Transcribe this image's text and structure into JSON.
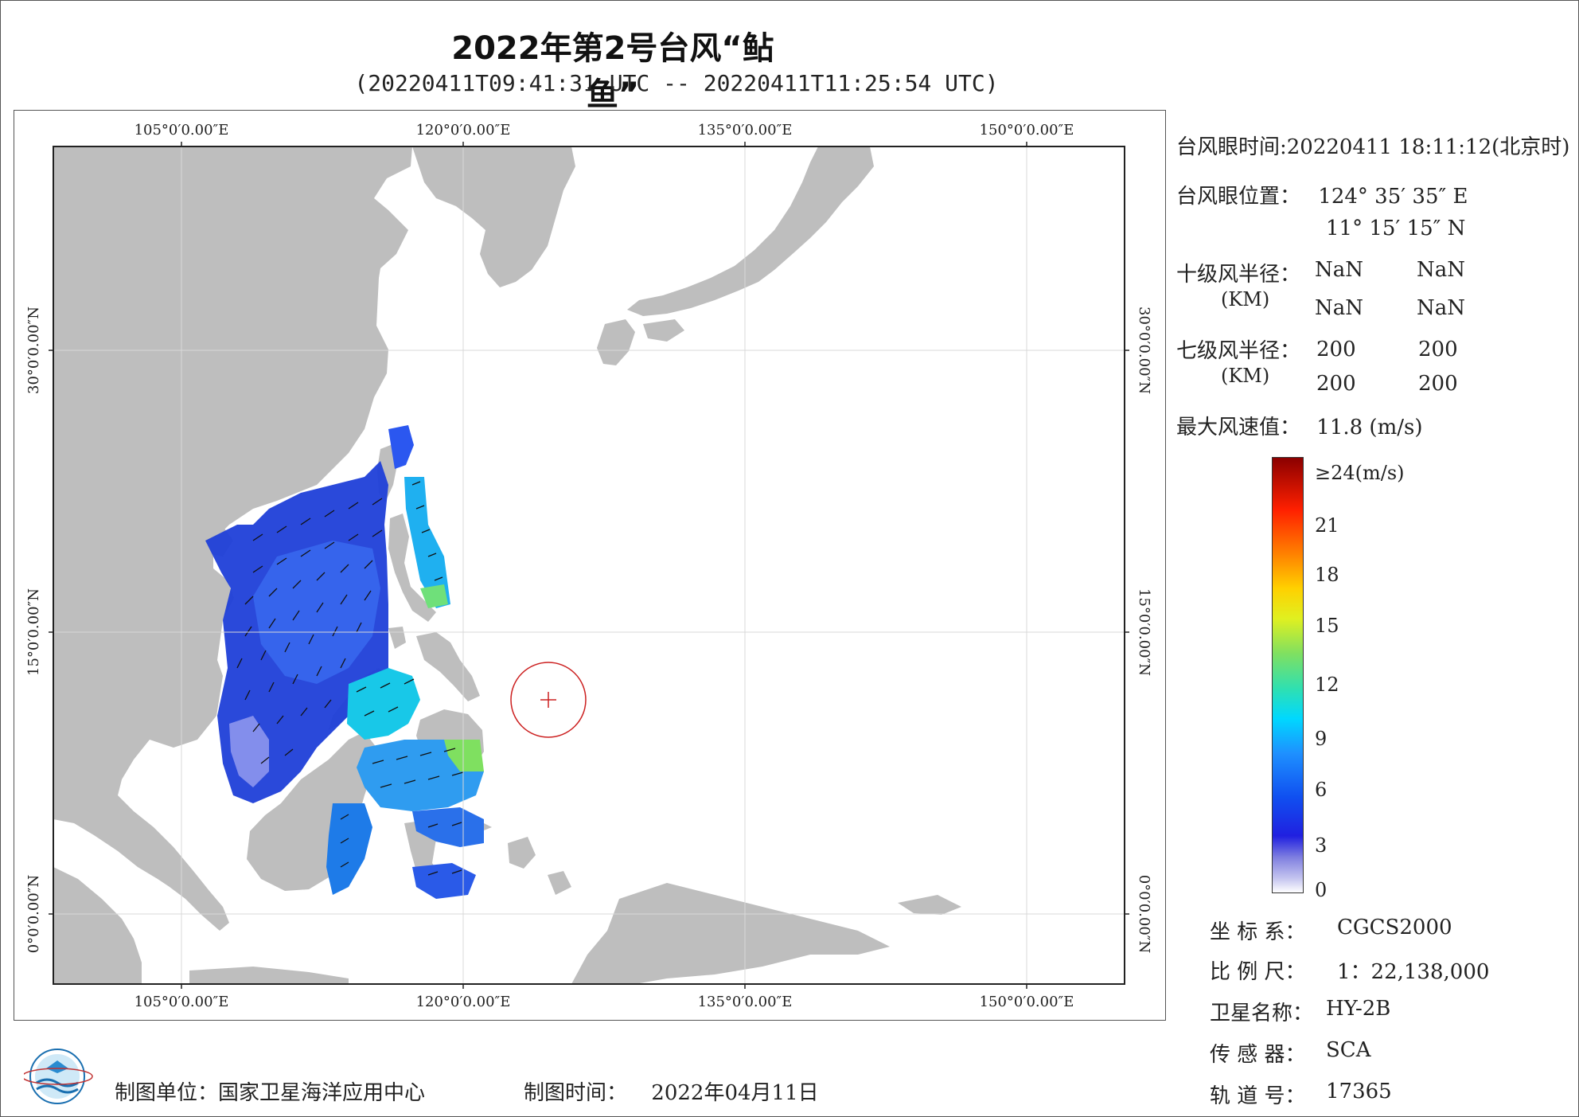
{
  "title": "2022年第2号台风“鲇鱼”",
  "subtitle": "(20220411T09:41:31 UTC -- 20220411T11:25:54 UTC)",
  "map": {
    "lon_labels": [
      "105°0′0.00″E",
      "120°0′0.00″E",
      "135°0′0.00″E",
      "150°0′0.00″E"
    ],
    "lat_labels": [
      "30°0′0.00″N",
      "15°0′0.00″N",
      "0°0′0.00″N"
    ],
    "lon_range": [
      98,
      155
    ],
    "lat_range": [
      -3.8,
      40.7
    ],
    "typhoon_eye": {
      "lon": 124.6,
      "lat": 11.25
    }
  },
  "info": {
    "eye_time_label": "台风眼时间:",
    "eye_time_value": "20220411 18:11:12(北京时)",
    "eye_pos_label": "台风眼位置：",
    "eye_lon": "124° 35′ 35″ E",
    "eye_lat": "11° 15′ 15″ N",
    "r10_label": "十级风半径：",
    "r10_unit": "(KM)",
    "r10_values": [
      "NaN",
      "NaN",
      "NaN",
      "NaN"
    ],
    "r7_label": "七级风半径：",
    "r7_unit": "(KM)",
    "r7_values": [
      "200",
      "200",
      "200",
      "200"
    ],
    "max_wind_label": "最大风速值：",
    "max_wind_value": "11.8  (m/s)"
  },
  "colorbar": {
    "labels": [
      "≥24(m/s)",
      "21",
      "18",
      "15",
      "12",
      "9",
      "6",
      "3",
      "0"
    ],
    "max": 24
  },
  "meta": {
    "coord_label": "坐 标 系：",
    "coord_value": "CGCS2000",
    "scale_label": "比 例 尺：",
    "scale_value": "1：22,138,000",
    "sat_label": "卫星名称：",
    "sat_value": "HY-2B",
    "sensor_label": "传 感 器：",
    "sensor_value": "SCA",
    "orbit_label": "轨 道 号：",
    "orbit_value": "17365"
  },
  "footer": {
    "maker_label": "制图单位：",
    "maker_value": "国家卫星海洋应用中心",
    "date_label": "制图时间：",
    "date_value": "2022年04月11日"
  },
  "colors": {
    "land": "#bebebe",
    "ocean": "#ffffff",
    "eye_circle": "#cc2020"
  }
}
